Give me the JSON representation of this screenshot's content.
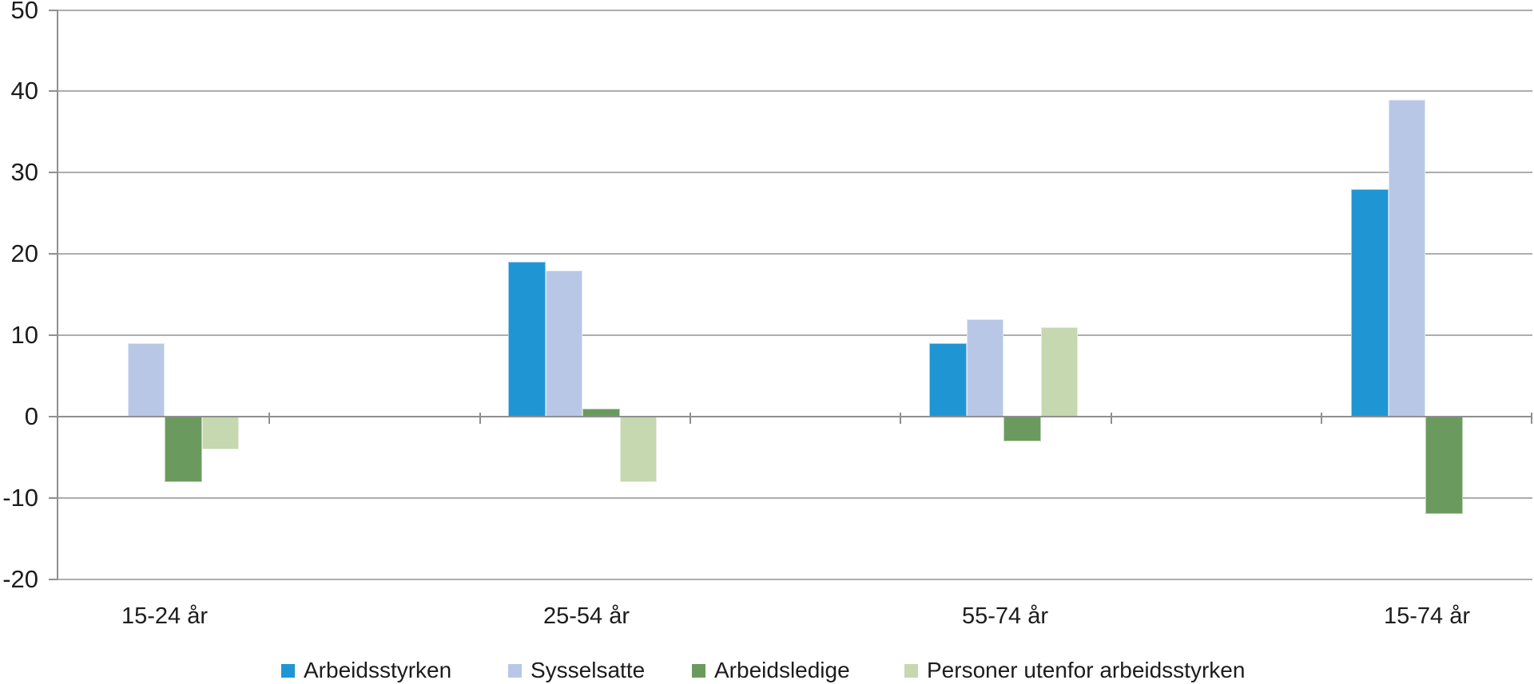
{
  "chart_data": {
    "type": "bar",
    "title": "",
    "categories": [
      "15-24 år",
      "25-54 år",
      "55-74 år",
      "15-74 år"
    ],
    "series": [
      {
        "name": "Arbeidsstyrken",
        "color": "#2095D3",
        "values": [
          0,
          19,
          9,
          28
        ]
      },
      {
        "name": "Sysselsatte",
        "color": "#B9C7E7",
        "values": [
          9,
          18,
          12,
          39
        ]
      },
      {
        "name": "Arbeidsledige",
        "color": "#6B9A5F",
        "values": [
          -8,
          1,
          -3,
          -12
        ]
      },
      {
        "name": "Personer utenfor arbeidsstyrken",
        "color": "#C5D8AF",
        "values": [
          -4,
          -8,
          11,
          0
        ]
      }
    ],
    "ylim": [
      -20,
      50
    ],
    "ytick_step": 10,
    "yticks": [
      50,
      40,
      30,
      20,
      10,
      0,
      -10,
      -20
    ],
    "grid": true,
    "legend_position": "bottom",
    "axis_color": "#8f8f8f",
    "gridline_color": "#adadad"
  }
}
